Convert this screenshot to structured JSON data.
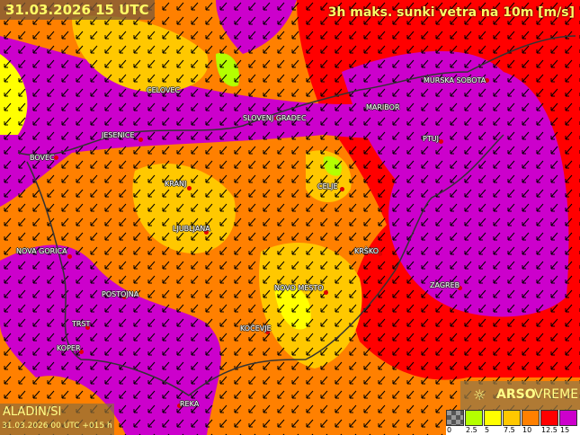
{
  "header": {
    "datetime": "31.03.2026 15 UTC",
    "product": "3h maks. sunki vetra na 10m [m/s]"
  },
  "model": {
    "name": "ALADIN/SI",
    "run": "31.03.2026 00 UTC +015 h"
  },
  "brand": {
    "icon": "wind-sun-icon",
    "name_bold": "ARSO",
    "name": "VREME"
  },
  "legend": {
    "labels": [
      "0",
      "2.5",
      "5",
      "7.5",
      "10",
      "12.5",
      "15"
    ],
    "colors": [
      "#808080",
      "#b4ff00",
      "#ffff00",
      "#ffc800",
      "#ff8000",
      "#ff0000",
      "#cc00cc"
    ]
  },
  "cities": [
    "CELOVEC",
    "SLOVENJ GRADEC",
    "MARIBOR",
    "MURSKA SOBOTA",
    "PTUJ",
    "JESENICE",
    "BOVEC",
    "KRANJ",
    "CELJE",
    "LJUBLJANA",
    "KRŠKO",
    "NOVA GORICA",
    "NOVO MESTO",
    "ZAGREB",
    "POSTOJNA",
    "KOČEVJE",
    "TRST",
    "KOPER",
    "REKA"
  ]
}
